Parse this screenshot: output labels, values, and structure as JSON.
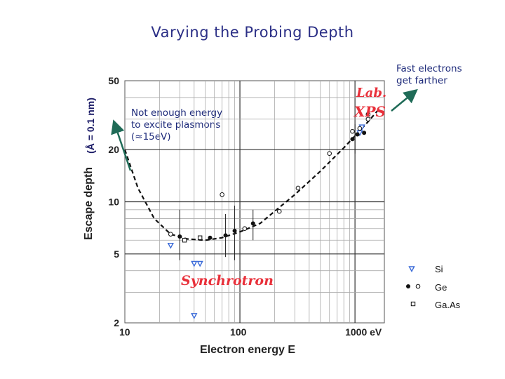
{
  "title": "Varying the Probing Depth",
  "notes": {
    "fast_electrons": [
      "Fast electrons",
      "get farther"
    ],
    "plasmons": [
      "Not enough energy",
      "to excite plasmons",
      "(≈15eV)"
    ],
    "unit": "(Å = 0.1 nm)"
  },
  "handwritten": {
    "lab_xps": [
      "Lab.",
      "XPS"
    ],
    "synchrotron": "Synchrotron"
  },
  "legend": [
    {
      "label": "Si",
      "marker": "triangle-down-outline"
    },
    {
      "label": "Ge",
      "marker": "circle-filled-and-open"
    },
    {
      "label": "Ga.As",
      "marker": "square-outline"
    }
  ],
  "colors": {
    "title": "#2b2f86",
    "arrow": "#1f6b57",
    "handwriting": "#e8303a",
    "si_marker": "#3a6ad8"
  },
  "chart_data": {
    "type": "scatter",
    "title": "",
    "xlabel": "Electron energy E",
    "ylabel": "Escape depth",
    "xscale": "log",
    "yscale": "log",
    "xlim": [
      10,
      1800
    ],
    "ylim": [
      2,
      50
    ],
    "x_ticks": [
      {
        "value": 10,
        "label": "10"
      },
      {
        "value": 100,
        "label": "100"
      },
      {
        "value": 1000,
        "label": "1000  eV"
      }
    ],
    "y_ticks": [
      {
        "value": 2,
        "label": "2"
      },
      {
        "value": 5,
        "label": "5"
      },
      {
        "value": 10,
        "label": "10"
      },
      {
        "value": 20,
        "label": "20"
      },
      {
        "value": 50,
        "label": "50"
      }
    ],
    "grid": true,
    "curve": [
      [
        10,
        20
      ],
      [
        13,
        12
      ],
      [
        18,
        8
      ],
      [
        25,
        6.5
      ],
      [
        35,
        6.1
      ],
      [
        50,
        6.0
      ],
      [
        70,
        6.2
      ],
      [
        100,
        6.7
      ],
      [
        150,
        7.5
      ],
      [
        200,
        8.8
      ],
      [
        300,
        11.0
      ],
      [
        500,
        15.0
      ],
      [
        800,
        20.5
      ],
      [
        1000,
        24.0
      ],
      [
        1300,
        29.0
      ],
      [
        1600,
        34.0
      ]
    ],
    "series": [
      {
        "name": "Si",
        "marker": "triangle-down",
        "points": [
          [
            25,
            5.6
          ],
          [
            40,
            4.4
          ],
          [
            45,
            4.4
          ],
          [
            40,
            2.2
          ],
          [
            1100,
            25.0
          ],
          [
            1150,
            27.0
          ]
        ]
      },
      {
        "name": "Ge",
        "marker": "circle-filled",
        "points": [
          [
            30,
            6.3
          ],
          [
            55,
            6.2
          ],
          [
            75,
            6.4
          ],
          [
            90,
            6.8
          ],
          [
            130,
            7.5
          ],
          [
            950,
            23.0
          ],
          [
            1050,
            24.5
          ],
          [
            1200,
            25.0
          ]
        ]
      },
      {
        "name": "Ge",
        "marker": "circle-open",
        "points": [
          [
            25,
            6.5
          ],
          [
            70,
            11.0
          ],
          [
            110,
            7.0
          ],
          [
            220,
            8.8
          ],
          [
            320,
            12.0
          ],
          [
            600,
            19.0
          ],
          [
            950,
            25.5
          ],
          [
            1100,
            26.5
          ],
          [
            1300,
            30.0
          ],
          [
            1300,
            32.0
          ]
        ]
      },
      {
        "name": "GaAs",
        "marker": "square-open",
        "points": [
          [
            33,
            6.0
          ],
          [
            45,
            6.2
          ]
        ]
      }
    ]
  }
}
